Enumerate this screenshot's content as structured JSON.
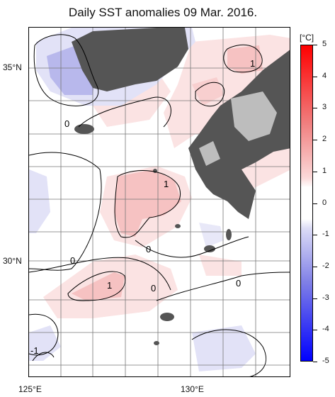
{
  "title": "Daily SST anomalies 09 Mar. 2016.",
  "map": {
    "lat_labels": [
      "35°N",
      "30°N"
    ],
    "lon_labels": [
      "125°E",
      "130°E"
    ],
    "contour_labels": [
      "1",
      "0",
      "1",
      "0",
      "0",
      "1",
      "0",
      "0",
      "-1"
    ]
  },
  "colorbar": {
    "unit": "[°C]",
    "ticks": [
      "5",
      "4",
      "3",
      "2",
      "1",
      "0",
      "-1",
      "-2",
      "-3",
      "-4",
      "-5"
    ],
    "colors": {
      "strong_positive": "#ff0000",
      "mid_positive": "#f08080",
      "weak_positive": "#fbd9d9",
      "zero": "#ffffff",
      "weak_negative": "#dcdcf6",
      "mid_negative": "#8080e6",
      "strong_negative": "#0000ff",
      "land": "#555555"
    }
  }
}
